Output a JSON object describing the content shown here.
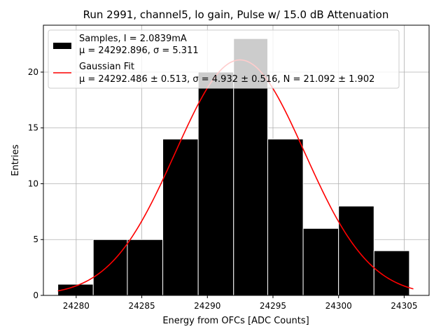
{
  "chart_data": {
    "type": "bar",
    "title": "Run 2991, channel5, lo gain, Pulse w/ 15.0 dB Attenuation",
    "xlabel": "Energy from OFCs [ADC Counts]",
    "ylabel": "Entries",
    "xlim": [
      24277.5,
      24306.9
    ],
    "ylim": [
      0,
      24.2
    ],
    "grid": true,
    "legend_position": "upper-left",
    "x_ticks": [
      24280,
      24285,
      24290,
      24295,
      24300,
      24305
    ],
    "y_ticks": [
      0,
      5,
      10,
      15,
      20
    ],
    "histogram": {
      "bin_edges": [
        24278.6,
        24281.3,
        24283.9,
        24286.6,
        24289.3,
        24292.0,
        24294.6,
        24297.3,
        24300.0,
        24302.7,
        24305.4
      ],
      "counts": [
        1,
        5,
        5,
        14,
        20,
        23,
        14,
        6,
        8,
        4
      ],
      "fill_color": "#000000",
      "edge_color": "#ffffff"
    },
    "fit": {
      "mu": 24292.486,
      "sigma": 4.932,
      "N": 21.092,
      "x_range": [
        24278.6,
        24305.7
      ],
      "color": "#ff0000"
    },
    "legend": [
      {
        "line1": "Samples, I = 2.0839mA",
        "line2": "μ = 24292.896, σ = 5.311"
      },
      {
        "line1": "Gaussian Fit",
        "line2": "μ = 24292.486 ± 0.513, σ = 4.932 ± 0.516, N = 21.092 ± 1.902"
      }
    ]
  }
}
